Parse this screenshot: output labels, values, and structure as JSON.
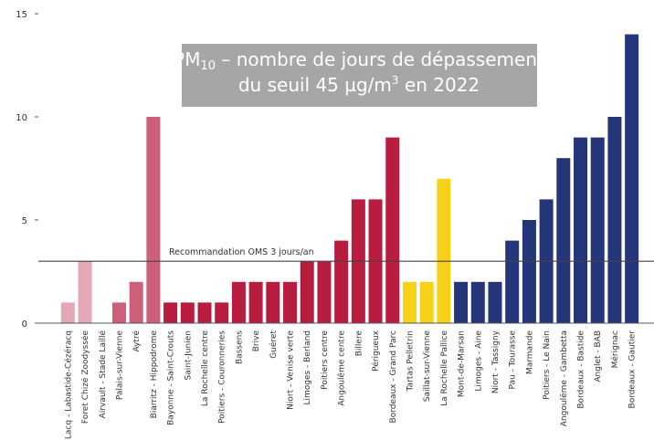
{
  "chart_data": {
    "type": "bar",
    "title": [
      "PM",
      "10",
      " – nombre de jours de dépassement",
      "du seuil 45 µg/m",
      "3",
      " en 2022"
    ],
    "categories": [
      "Lacq - Labastide-Cézéracq",
      "Foret Chizé Zoodyssée",
      "Airvault - Stade Laillé",
      "Palais-sur-Vienne",
      "Aytré",
      "Biarritz - Hippodrome",
      "Bayonne - Saint-Crouts",
      "Saint-Junien",
      "La Rochelle centre",
      "Poitiers - Couronneries",
      "Bassens",
      "Brive",
      "Guéret",
      "Niort - Venise verte",
      "Limoges - Berland",
      "Poitiers centre",
      "Angoulême centre",
      "Billere",
      "Périgueux",
      "Bordeaux - Grand Parc",
      "Tartas Pelletrin",
      "Saillat-sur-Vienne",
      "La Rochelle Pallice",
      "Mont-de-Marsan",
      "Limoges - Aine",
      "Niort - Tassigny",
      "Pau - Tourasse",
      "Marmande",
      "Poitiers - Le Nain",
      "Angoulême - Gambetta",
      "Bordeaux - Bastide",
      "Anglet - BAB",
      "Mérignac",
      "Bordeaux - Gautier"
    ],
    "values": [
      1,
      3,
      0,
      1,
      2,
      10,
      1,
      1,
      1,
      1,
      2,
      2,
      2,
      2,
      3,
      3,
      4,
      6,
      6,
      9,
      2,
      2,
      7,
      2,
      2,
      2,
      4,
      5,
      6,
      8,
      9,
      9,
      10,
      14
    ],
    "colors": [
      "#e4a7b5",
      "#e4a7b5",
      "#e4a7b5",
      "#cc5f7a",
      "#cc5f7a",
      "#cc5f7a",
      "#b81c3e",
      "#b81c3e",
      "#b81c3e",
      "#b81c3e",
      "#b81c3e",
      "#b81c3e",
      "#b81c3e",
      "#b81c3e",
      "#b81c3e",
      "#b81c3e",
      "#b81c3e",
      "#b81c3e",
      "#b81c3e",
      "#b81c3e",
      "#f7d117",
      "#f7d117",
      "#f7d117",
      "#24357a",
      "#24357a",
      "#24357a",
      "#24357a",
      "#24357a",
      "#24357a",
      "#24357a",
      "#24357a",
      "#24357a",
      "#24357a",
      "#24357a"
    ],
    "ylim": [
      0,
      15
    ],
    "yticks": [
      0,
      5,
      10,
      15
    ],
    "reference_line": {
      "value": 3,
      "label": "Recommandation OMS 3 jours/an"
    }
  }
}
